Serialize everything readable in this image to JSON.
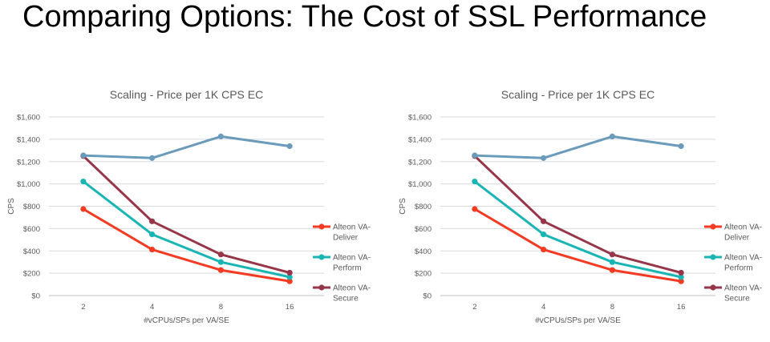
{
  "slide": {
    "title": "Comparing Options: The Cost of SSL Performance"
  },
  "chart_data": [
    {
      "type": "line",
      "title": "Scaling - Price per 1K CPS EC",
      "xlabel": "#vCPUs/SPs per VA/SE",
      "ylabel": "CPS",
      "categories": [
        "2",
        "4",
        "8",
        "16"
      ],
      "ylim": [
        0,
        1600
      ],
      "yticks": [
        "$0",
        "$200",
        "$400",
        "$600",
        "$800",
        "$1,000",
        "$1,200",
        "$1,400",
        "$1,600"
      ],
      "grid": true,
      "legend_position": "right",
      "series": [
        {
          "name": "Alteon VA-Deliver",
          "legend_lines": [
            "Alteon VA-",
            "Deliver"
          ],
          "color": "#f23b22",
          "values": [
            775,
            412,
            228,
            128
          ]
        },
        {
          "name": "Alteon VA-Perform",
          "legend_lines": [
            "Alteon VA-",
            "Perform"
          ],
          "color": "#19b5b5",
          "values": [
            1022,
            548,
            300,
            166
          ]
        },
        {
          "name": "Alteon VA-Secure",
          "legend_lines": [
            "Alteon VA-",
            "Secure"
          ],
          "color": "#963648",
          "values": [
            1250,
            665,
            368,
            205
          ]
        },
        {
          "name": "",
          "legend_lines": [],
          "color": "#6a9bbb",
          "values": [
            1255,
            1232,
            1425,
            1338
          ]
        }
      ]
    },
    {
      "type": "line",
      "title": "Scaling - Price per 1K CPS EC",
      "xlabel": "#vCPUs/SPs per VA/SE",
      "ylabel": "CPS",
      "categories": [
        "2",
        "4",
        "8",
        "16"
      ],
      "ylim": [
        0,
        1600
      ],
      "yticks": [
        "$0",
        "$200",
        "$400",
        "$600",
        "$800",
        "$1,000",
        "$1,200",
        "$1,400",
        "$1,600"
      ],
      "grid": true,
      "legend_position": "right",
      "series": [
        {
          "name": "Alteon VA-Deliver",
          "legend_lines": [
            "Alteon VA-",
            "Deliver"
          ],
          "color": "#f23b22",
          "values": [
            775,
            412,
            228,
            128
          ]
        },
        {
          "name": "Alteon VA-Perform",
          "legend_lines": [
            "Alteon VA-",
            "Perform"
          ],
          "color": "#19b5b5",
          "values": [
            1022,
            548,
            300,
            166
          ]
        },
        {
          "name": "Alteon VA-Secure",
          "legend_lines": [
            "Alteon VA-",
            "Secure"
          ],
          "color": "#963648",
          "values": [
            1250,
            665,
            368,
            205
          ]
        },
        {
          "name": "",
          "legend_lines": [],
          "color": "#6a9bbb",
          "values": [
            1255,
            1232,
            1425,
            1338
          ]
        }
      ]
    }
  ]
}
